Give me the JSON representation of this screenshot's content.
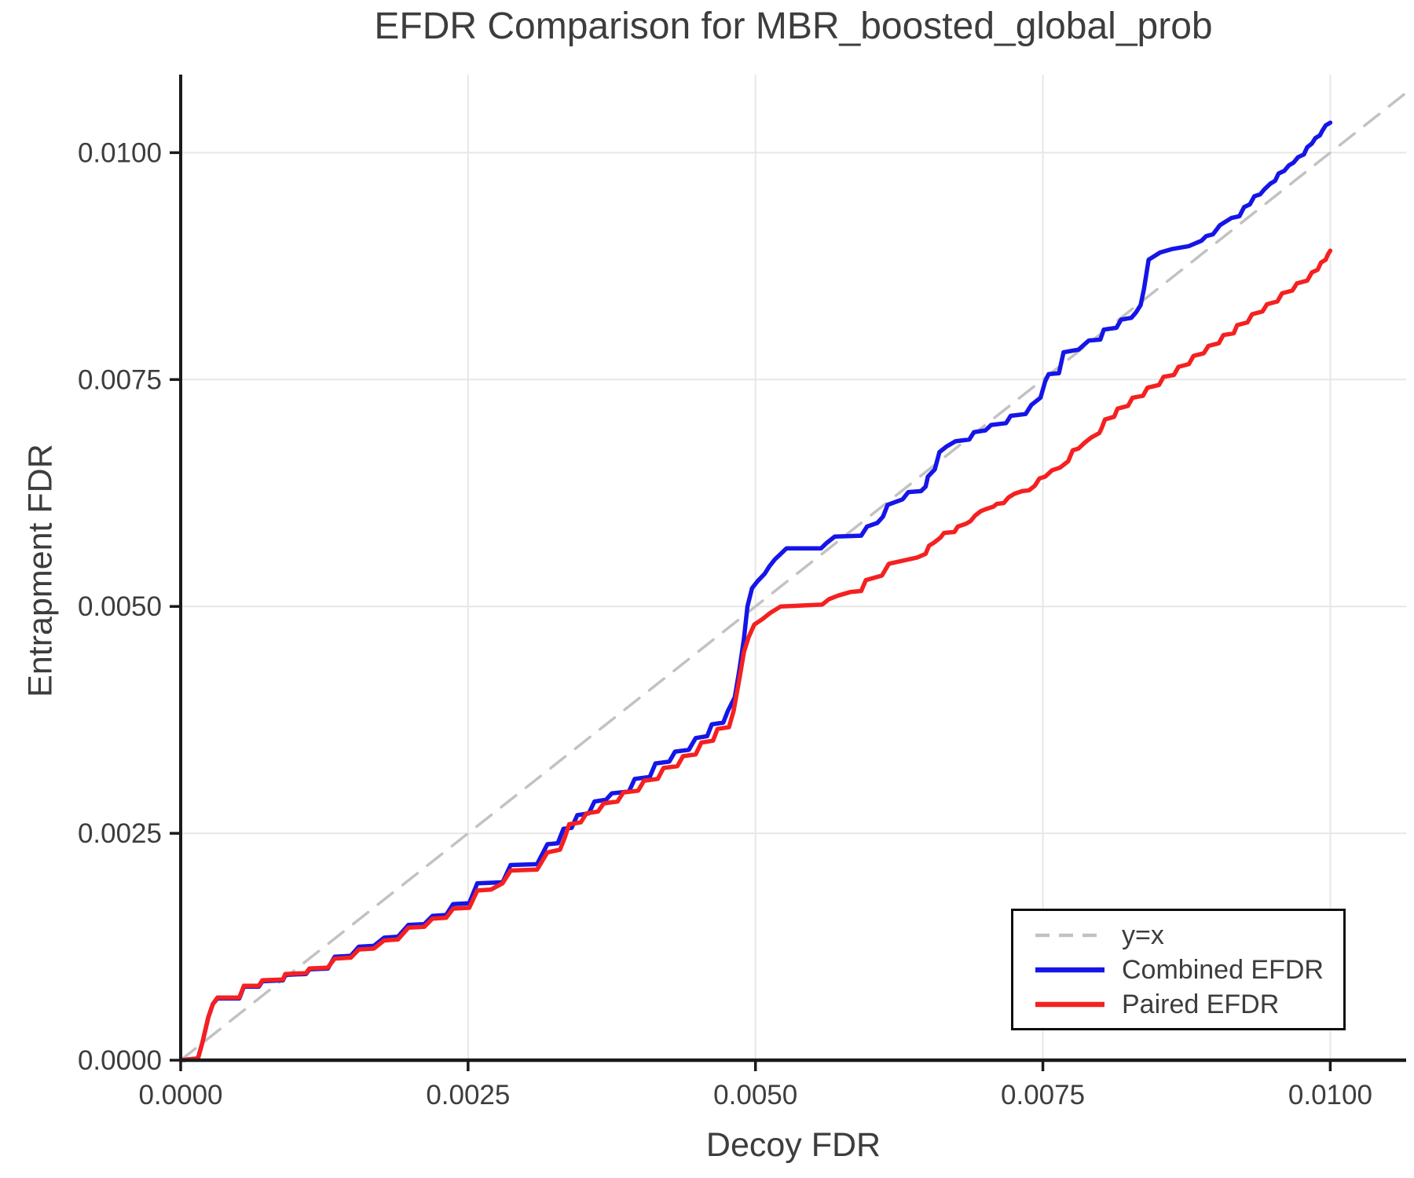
{
  "chart_data": {
    "type": "line",
    "title": "EFDR Comparison for MBR_boosted_global_prob",
    "xlabel": "Decoy FDR",
    "ylabel": "Entrapment FDR",
    "xlim": [
      0,
      0.01066
    ],
    "ylim": [
      0,
      0.01086
    ],
    "grid": true,
    "legend_position": "lower right",
    "xticks": {
      "values": [
        0,
        0.0025,
        0.005,
        0.0075,
        0.01
      ],
      "labels": [
        "0.0000",
        "0.0025",
        "0.0050",
        "0.0075",
        "0.0100"
      ]
    },
    "yticks": {
      "values": [
        0,
        0.0025,
        0.005,
        0.0075,
        0.01
      ],
      "labels": [
        "0.0000",
        "0.0025",
        "0.0050",
        "0.0075",
        "0.0100"
      ]
    },
    "style": {
      "grid_color": "#e7e7e7",
      "spine_color": "#1a1a1a",
      "tick_color": "#1a1a1a",
      "tick_label_color": "#3d3d3d",
      "background": "#ffffff"
    },
    "series": [
      {
        "name": "y=x",
        "kind": "diagonal",
        "color": "#c2c2c2",
        "width": 3.5,
        "dash": [
          24,
          16
        ]
      },
      {
        "name": "Combined EFDR",
        "kind": "curve",
        "color": "#1515e8",
        "width": 5.5,
        "dash": null,
        "points": [
          [
            0.0,
            0.0
          ],
          [
            0.00015,
            2e-05
          ],
          [
            0.00019,
            0.0002
          ],
          [
            0.00024,
            0.00047
          ],
          [
            0.00028,
            0.00062
          ],
          [
            0.00032,
            0.00068
          ],
          [
            0.00051,
            0.00068
          ],
          [
            0.00055,
            0.00081
          ],
          [
            0.00068,
            0.00081
          ],
          [
            0.00071,
            0.00087
          ],
          [
            0.00089,
            0.00088
          ],
          [
            0.00091,
            0.00094
          ],
          [
            0.00109,
            0.00095
          ],
          [
            0.00112,
            0.001
          ],
          [
            0.00128,
            0.00101
          ],
          [
            0.00134,
            0.00114
          ],
          [
            0.00148,
            0.00115
          ],
          [
            0.00155,
            0.00125
          ],
          [
            0.00168,
            0.00126
          ],
          [
            0.00177,
            0.00135
          ],
          [
            0.00189,
            0.00136
          ],
          [
            0.00198,
            0.00149
          ],
          [
            0.00212,
            0.0015
          ],
          [
            0.00219,
            0.00159
          ],
          [
            0.00231,
            0.0016
          ],
          [
            0.00237,
            0.00172
          ],
          [
            0.00251,
            0.00173
          ],
          [
            0.00258,
            0.00195
          ],
          [
            0.0028,
            0.00196
          ],
          [
            0.00287,
            0.00215
          ],
          [
            0.0031,
            0.00216
          ],
          [
            0.00319,
            0.00238
          ],
          [
            0.00328,
            0.00239
          ],
          [
            0.00333,
            0.00255
          ],
          [
            0.0034,
            0.00256
          ],
          [
            0.00345,
            0.0027
          ],
          [
            0.00355,
            0.00272
          ],
          [
            0.0036,
            0.00285
          ],
          [
            0.0037,
            0.00287
          ],
          [
            0.00375,
            0.00294
          ],
          [
            0.0039,
            0.00296
          ],
          [
            0.00395,
            0.0031
          ],
          [
            0.00408,
            0.00312
          ],
          [
            0.00413,
            0.00327
          ],
          [
            0.00425,
            0.00329
          ],
          [
            0.0043,
            0.0034
          ],
          [
            0.00442,
            0.00342
          ],
          [
            0.00448,
            0.00355
          ],
          [
            0.00458,
            0.00357
          ],
          [
            0.00462,
            0.0037
          ],
          [
            0.00472,
            0.00372
          ],
          [
            0.00476,
            0.00385
          ],
          [
            0.00482,
            0.004
          ],
          [
            0.00486,
            0.0043
          ],
          [
            0.0049,
            0.00465
          ],
          [
            0.00493,
            0.005
          ],
          [
            0.00497,
            0.0052
          ],
          [
            0.00502,
            0.00528
          ],
          [
            0.00508,
            0.00536
          ],
          [
            0.00512,
            0.00544
          ],
          [
            0.00517,
            0.00552
          ],
          [
            0.00522,
            0.00558
          ],
          [
            0.00527,
            0.00564
          ],
          [
            0.00557,
            0.00564
          ],
          [
            0.00562,
            0.0057
          ],
          [
            0.00569,
            0.00577
          ],
          [
            0.00592,
            0.00578
          ],
          [
            0.00597,
            0.00588
          ],
          [
            0.00606,
            0.00592
          ],
          [
            0.00611,
            0.00599
          ],
          [
            0.00615,
            0.00612
          ],
          [
            0.00628,
            0.00618
          ],
          [
            0.00633,
            0.00626
          ],
          [
            0.00644,
            0.00627
          ],
          [
            0.00648,
            0.00632
          ],
          [
            0.0065,
            0.00643
          ],
          [
            0.00656,
            0.00651
          ],
          [
            0.0066,
            0.0067
          ],
          [
            0.00666,
            0.00676
          ],
          [
            0.00674,
            0.00682
          ],
          [
            0.00686,
            0.00684
          ],
          [
            0.0069,
            0.00692
          ],
          [
            0.007,
            0.00694
          ],
          [
            0.00705,
            0.007
          ],
          [
            0.00718,
            0.00702
          ],
          [
            0.00722,
            0.0071
          ],
          [
            0.00735,
            0.00712
          ],
          [
            0.0074,
            0.00722
          ],
          [
            0.00748,
            0.0073
          ],
          [
            0.00752,
            0.00748
          ],
          [
            0.00755,
            0.00756
          ],
          [
            0.00764,
            0.00757
          ],
          [
            0.00768,
            0.0078
          ],
          [
            0.00781,
            0.00783
          ],
          [
            0.0079,
            0.00793
          ],
          [
            0.008,
            0.00794
          ],
          [
            0.00803,
            0.00805
          ],
          [
            0.00814,
            0.00807
          ],
          [
            0.00818,
            0.00816
          ],
          [
            0.00827,
            0.00818
          ],
          [
            0.00831,
            0.00824
          ],
          [
            0.00835,
            0.00832
          ],
          [
            0.00838,
            0.0085
          ],
          [
            0.00842,
            0.00882
          ],
          [
            0.00852,
            0.0089
          ],
          [
            0.00863,
            0.00894
          ],
          [
            0.00877,
            0.00897
          ],
          [
            0.00888,
            0.00903
          ],
          [
            0.00892,
            0.00908
          ],
          [
            0.00898,
            0.0091
          ],
          [
            0.00904,
            0.0092
          ],
          [
            0.00909,
            0.00924
          ],
          [
            0.00914,
            0.00928
          ],
          [
            0.00921,
            0.0093
          ],
          [
            0.00925,
            0.0094
          ],
          [
            0.0093,
            0.00943
          ],
          [
            0.00934,
            0.00952
          ],
          [
            0.00939,
            0.00954
          ],
          [
            0.00943,
            0.0096
          ],
          [
            0.00948,
            0.00966
          ],
          [
            0.00952,
            0.00969
          ],
          [
            0.00955,
            0.00977
          ],
          [
            0.0096,
            0.0098
          ],
          [
            0.00964,
            0.00986
          ],
          [
            0.00968,
            0.00989
          ],
          [
            0.00972,
            0.00995
          ],
          [
            0.00977,
            0.00998
          ],
          [
            0.0098,
            0.01006
          ],
          [
            0.00984,
            0.0101
          ],
          [
            0.00987,
            0.01016
          ],
          [
            0.00991,
            0.01019
          ],
          [
            0.00993,
            0.01024
          ],
          [
            0.00996,
            0.0103
          ],
          [
            0.01,
            0.01033
          ]
        ]
      },
      {
        "name": "Paired EFDR",
        "kind": "curve",
        "color": "#f52020",
        "width": 5.5,
        "dash": null,
        "points": [
          [
            0.0,
            0.0
          ],
          [
            0.00015,
            2e-05
          ],
          [
            0.00019,
            0.0002
          ],
          [
            0.00024,
            0.00047
          ],
          [
            0.00028,
            0.00062
          ],
          [
            0.00032,
            0.00069
          ],
          [
            0.00051,
            0.00069
          ],
          [
            0.00055,
            0.00082
          ],
          [
            0.00068,
            0.00082
          ],
          [
            0.00071,
            0.00088
          ],
          [
            0.00089,
            0.00089
          ],
          [
            0.00091,
            0.00095
          ],
          [
            0.00109,
            0.00096
          ],
          [
            0.00112,
            0.00101
          ],
          [
            0.00128,
            0.00102
          ],
          [
            0.00134,
            0.00112
          ],
          [
            0.00148,
            0.00113
          ],
          [
            0.00155,
            0.00122
          ],
          [
            0.00168,
            0.00123
          ],
          [
            0.00177,
            0.00132
          ],
          [
            0.00189,
            0.00133
          ],
          [
            0.00198,
            0.00146
          ],
          [
            0.00212,
            0.00147
          ],
          [
            0.00219,
            0.00156
          ],
          [
            0.00231,
            0.00157
          ],
          [
            0.00237,
            0.00167
          ],
          [
            0.00251,
            0.00168
          ],
          [
            0.00258,
            0.00187
          ],
          [
            0.0027,
            0.00188
          ],
          [
            0.0028,
            0.00195
          ],
          [
            0.00287,
            0.00209
          ],
          [
            0.0031,
            0.0021
          ],
          [
            0.00319,
            0.00229
          ],
          [
            0.0033,
            0.00232
          ],
          [
            0.00334,
            0.00245
          ],
          [
            0.00338,
            0.0026
          ],
          [
            0.00348,
            0.00262
          ],
          [
            0.00353,
            0.00272
          ],
          [
            0.00363,
            0.00274
          ],
          [
            0.00368,
            0.00283
          ],
          [
            0.0038,
            0.00285
          ],
          [
            0.00385,
            0.00295
          ],
          [
            0.00398,
            0.00297
          ],
          [
            0.00403,
            0.00308
          ],
          [
            0.00415,
            0.0031
          ],
          [
            0.0042,
            0.00322
          ],
          [
            0.00432,
            0.00324
          ],
          [
            0.00437,
            0.00335
          ],
          [
            0.00448,
            0.00337
          ],
          [
            0.00453,
            0.0035
          ],
          [
            0.00463,
            0.00352
          ],
          [
            0.00467,
            0.00365
          ],
          [
            0.00477,
            0.00367
          ],
          [
            0.00481,
            0.00385
          ],
          [
            0.00486,
            0.0042
          ],
          [
            0.0049,
            0.0045
          ],
          [
            0.00494,
            0.00466
          ],
          [
            0.00499,
            0.0048
          ],
          [
            0.00506,
            0.00486
          ],
          [
            0.00513,
            0.00493
          ],
          [
            0.00522,
            0.005
          ],
          [
            0.00558,
            0.00502
          ],
          [
            0.00564,
            0.00508
          ],
          [
            0.00572,
            0.00512
          ],
          [
            0.00583,
            0.00516
          ],
          [
            0.00592,
            0.00517
          ],
          [
            0.00596,
            0.00529
          ],
          [
            0.0061,
            0.00534
          ],
          [
            0.00616,
            0.00547
          ],
          [
            0.0063,
            0.00551
          ],
          [
            0.00641,
            0.00554
          ],
          [
            0.00648,
            0.00558
          ],
          [
            0.00651,
            0.00567
          ],
          [
            0.00655,
            0.0057
          ],
          [
            0.00661,
            0.00576
          ],
          [
            0.00664,
            0.00581
          ],
          [
            0.00673,
            0.00582
          ],
          [
            0.00676,
            0.00588
          ],
          [
            0.00683,
            0.00591
          ],
          [
            0.00687,
            0.00594
          ],
          [
            0.00691,
            0.006
          ],
          [
            0.00696,
            0.00605
          ],
          [
            0.007,
            0.00607
          ],
          [
            0.00707,
            0.0061
          ],
          [
            0.0071,
            0.00613
          ],
          [
            0.00716,
            0.00614
          ],
          [
            0.0072,
            0.0062
          ],
          [
            0.00725,
            0.00624
          ],
          [
            0.00732,
            0.00627
          ],
          [
            0.00738,
            0.00628
          ],
          [
            0.00743,
            0.00633
          ],
          [
            0.00747,
            0.00641
          ],
          [
            0.00752,
            0.00643
          ],
          [
            0.00758,
            0.0065
          ],
          [
            0.00765,
            0.00653
          ],
          [
            0.00772,
            0.0066
          ],
          [
            0.00776,
            0.00672
          ],
          [
            0.00781,
            0.00674
          ],
          [
            0.00786,
            0.0068
          ],
          [
            0.00792,
            0.00686
          ],
          [
            0.00799,
            0.00691
          ],
          [
            0.00801,
            0.00696
          ],
          [
            0.00804,
            0.00706
          ],
          [
            0.00812,
            0.00709
          ],
          [
            0.00815,
            0.00718
          ],
          [
            0.00824,
            0.00721
          ],
          [
            0.00828,
            0.0073
          ],
          [
            0.00837,
            0.00732
          ],
          [
            0.00841,
            0.00741
          ],
          [
            0.00851,
            0.00744
          ],
          [
            0.00855,
            0.00753
          ],
          [
            0.00864,
            0.00755
          ],
          [
            0.00868,
            0.00764
          ],
          [
            0.00877,
            0.00767
          ],
          [
            0.00881,
            0.00776
          ],
          [
            0.0089,
            0.00779
          ],
          [
            0.00894,
            0.00787
          ],
          [
            0.00903,
            0.0079
          ],
          [
            0.00907,
            0.00799
          ],
          [
            0.00916,
            0.00801
          ],
          [
            0.00919,
            0.0081
          ],
          [
            0.00928,
            0.00813
          ],
          [
            0.00932,
            0.00822
          ],
          [
            0.00941,
            0.00825
          ],
          [
            0.00945,
            0.00833
          ],
          [
            0.00954,
            0.00836
          ],
          [
            0.00958,
            0.00845
          ],
          [
            0.00967,
            0.00848
          ],
          [
            0.00971,
            0.00856
          ],
          [
            0.0098,
            0.00859
          ],
          [
            0.00984,
            0.00868
          ],
          [
            0.00989,
            0.00871
          ],
          [
            0.00992,
            0.00879
          ],
          [
            0.00996,
            0.00882
          ],
          [
            0.00998,
            0.00888
          ],
          [
            0.01,
            0.00892
          ]
        ]
      }
    ]
  }
}
